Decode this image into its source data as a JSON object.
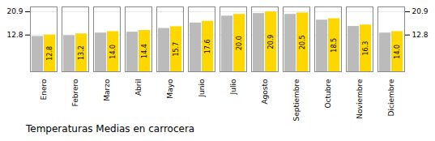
{
  "chart_data": {
    "type": "bar",
    "title": "Temperaturas Medias en carrocera",
    "categories": [
      "Enero",
      "Febrero",
      "Marzo",
      "Abril",
      "Mayo",
      "Junio",
      "Julio",
      "Agosto",
      "Septiembre",
      "Octubre",
      "Noviembre",
      "Diciembre"
    ],
    "series": [
      {
        "color": "#BBBBBB",
        "values": [
          12.3,
          12.6,
          13.5,
          13.8,
          15.1,
          17.0,
          19.4,
          20.3,
          20.0,
          18.0,
          15.8,
          13.5
        ]
      },
      {
        "color": "#FFD700",
        "values": [
          12.8,
          13.2,
          14.0,
          14.4,
          15.7,
          17.6,
          20.0,
          20.9,
          20.5,
          18.5,
          16.3,
          14.0
        ],
        "value_labels": [
          "12.8",
          "13.2",
          "14.0",
          "14.4",
          "15.7",
          "17.6",
          "20.0",
          "20.9",
          "20.5",
          "18.5",
          "16.3",
          "14.0"
        ],
        "data_labels": true
      }
    ],
    "ylim": [
      0,
      22.6
    ],
    "yticks": [
      12.8,
      20.9
    ],
    "grid": true
  }
}
